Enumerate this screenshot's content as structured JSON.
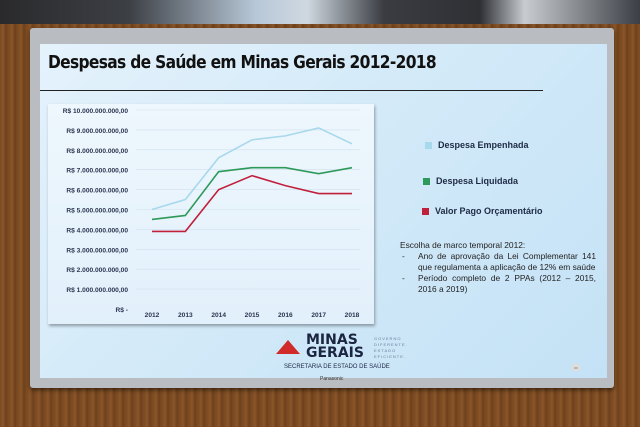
{
  "slide": {
    "title": "Despesas de Saúde em Minas Gerais 2012-2018",
    "legend": [
      {
        "label": "Despesa Empenhada",
        "color": "#a8d8ec"
      },
      {
        "label": "Despesa Liquidada",
        "color": "#2e9a5a"
      },
      {
        "label": "Valor Pago Orçamentário",
        "color": "#c0203c"
      }
    ],
    "note": {
      "heading": "Escolha de marco temporal 2012:",
      "items": [
        "Ano de aprovação da Lei Complementar 141 que regulamenta a aplicação de 12% em saúde",
        "Período completo de 2 PPAs (2012 – 2015, 2016 a 2019)"
      ]
    },
    "logo": {
      "name_line1": "MINAS",
      "name_line2": "GERAIS",
      "tagline": [
        "GOVERNO",
        "DIFERENTE.",
        "ESTADO",
        "EFICIENTE."
      ],
      "subtitle": "SECRETARIA DE ESTADO DE SAÚDE",
      "accent": "#d12a2a"
    }
  },
  "tv": {
    "brand": "Panasonic"
  },
  "chart_data": {
    "type": "line",
    "title": "Despesas de Saúde em Minas Gerais 2012-2018",
    "xlabel": "",
    "ylabel": "",
    "categories": [
      "2012",
      "2013",
      "2014",
      "2015",
      "2016",
      "2017",
      "2018"
    ],
    "ylim": [
      0,
      10000000000
    ],
    "y_ticks": [
      "R$ -",
      "R$ 1.000.000.000,00",
      "R$ 2.000.000.000,00",
      "R$ 3.000.000.000,00",
      "R$ 4.000.000.000,00",
      "R$ 5.000.000.000,00",
      "R$ 6.000.000.000,00",
      "R$ 7.000.000.000,00",
      "R$ 8.000.000.000,00",
      "R$ 9.000.000.000,00",
      "R$ 10.000.000.000,00"
    ],
    "grid": true,
    "legend_position": "right",
    "series": [
      {
        "name": "Despesa Empenhada",
        "color": "#a8d8ec",
        "values": [
          5000000000,
          5500000000,
          7600000000,
          8500000000,
          8700000000,
          9100000000,
          8300000000
        ]
      },
      {
        "name": "Despesa Liquidada",
        "color": "#2e9a5a",
        "values": [
          4500000000,
          4700000000,
          6900000000,
          7100000000,
          7100000000,
          6800000000,
          7100000000
        ]
      },
      {
        "name": "Valor Pago Orçamentário",
        "color": "#c0203c",
        "values": [
          3900000000,
          3900000000,
          6000000000,
          6700000000,
          6200000000,
          5800000000,
          5800000000
        ]
      }
    ]
  }
}
